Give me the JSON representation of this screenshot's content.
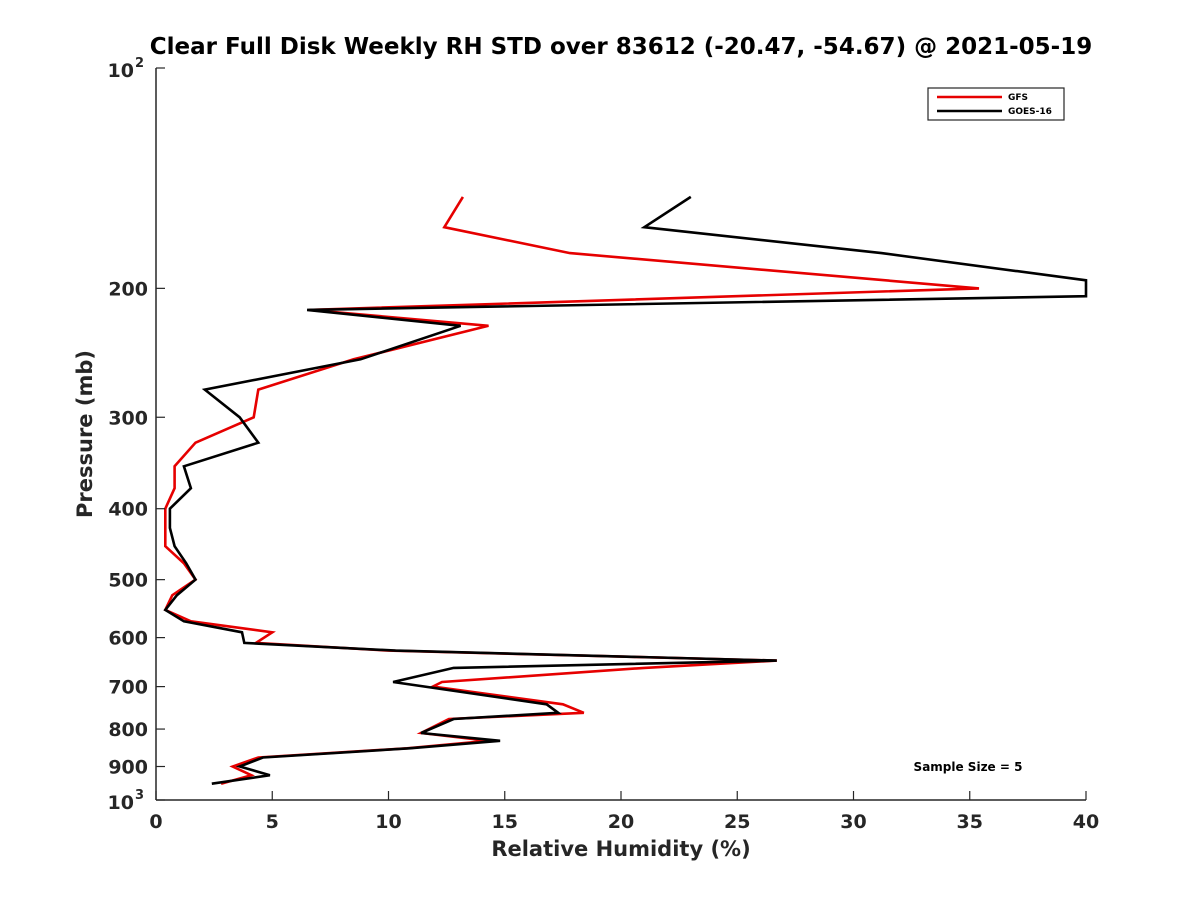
{
  "chart_data": {
    "type": "line",
    "title": "Clear Full Disk Weekly RH STD over 83612 (-20.47, -54.67) @ 2021-05-19",
    "xlabel": "Relative Humidity (%)",
    "ylabel": "Pressure (mb)",
    "xlim": [
      0,
      40
    ],
    "ylim": [
      100,
      1000
    ],
    "y_scale": "log",
    "y_reversed": true,
    "x_ticks": [
      0,
      5,
      10,
      15,
      20,
      25,
      30,
      35,
      40
    ],
    "y_ticks": [
      {
        "value": 100,
        "base": "10",
        "exp": "2"
      },
      {
        "value": 200,
        "label": "200"
      },
      {
        "value": 300,
        "label": "300"
      },
      {
        "value": 400,
        "label": "400"
      },
      {
        "value": 500,
        "label": "500"
      },
      {
        "value": 600,
        "label": "600"
      },
      {
        "value": 700,
        "label": "700"
      },
      {
        "value": 800,
        "label": "800"
      },
      {
        "value": 900,
        "label": "900"
      },
      {
        "value": 1000,
        "base": "10",
        "exp": "3"
      }
    ],
    "legend_position": "top-right",
    "grid": false,
    "annotation": "Sample Size = 5",
    "series": [
      {
        "name": "GFS",
        "color": "#e60000",
        "points": [
          [
            13.2,
            150
          ],
          [
            12.4,
            165
          ],
          [
            17.8,
            179
          ],
          [
            35.4,
            200
          ],
          [
            6.6,
            214
          ],
          [
            14.3,
            225
          ],
          [
            8.5,
            250
          ],
          [
            4.4,
            275
          ],
          [
            4.2,
            300
          ],
          [
            1.7,
            325
          ],
          [
            0.8,
            350
          ],
          [
            0.8,
            375
          ],
          [
            0.4,
            400
          ],
          [
            0.4,
            425
          ],
          [
            0.4,
            450
          ],
          [
            1.2,
            475
          ],
          [
            1.7,
            500
          ],
          [
            0.7,
            525
          ],
          [
            0.4,
            550
          ],
          [
            1.5,
            570
          ],
          [
            5.0,
            590
          ],
          [
            4.3,
            610
          ],
          [
            10.0,
            625
          ],
          [
            26.7,
            645
          ],
          [
            21.0,
            660
          ],
          [
            12.3,
            690
          ],
          [
            11.9,
            700
          ],
          [
            17.5,
            740
          ],
          [
            18.4,
            760
          ],
          [
            12.6,
            775
          ],
          [
            11.4,
            810
          ],
          [
            14.3,
            830
          ],
          [
            10.8,
            850
          ],
          [
            4.4,
            875
          ],
          [
            3.3,
            900
          ],
          [
            4.1,
            925
          ],
          [
            2.8,
            950
          ]
        ]
      },
      {
        "name": "GOES-16",
        "color": "#000000",
        "points": [
          [
            23.0,
            150
          ],
          [
            21.0,
            165
          ],
          [
            31.2,
            179
          ],
          [
            40.0,
            195
          ],
          [
            40.0,
            205
          ],
          [
            6.5,
            214
          ],
          [
            13.1,
            225
          ],
          [
            8.8,
            250
          ],
          [
            2.1,
            275
          ],
          [
            3.6,
            300
          ],
          [
            4.4,
            325
          ],
          [
            1.2,
            350
          ],
          [
            1.5,
            375
          ],
          [
            0.6,
            400
          ],
          [
            0.6,
            425
          ],
          [
            0.8,
            450
          ],
          [
            1.3,
            475
          ],
          [
            1.7,
            500
          ],
          [
            0.9,
            525
          ],
          [
            0.4,
            550
          ],
          [
            1.2,
            570
          ],
          [
            3.7,
            590
          ],
          [
            3.8,
            610
          ],
          [
            10.3,
            625
          ],
          [
            26.7,
            645
          ],
          [
            12.8,
            660
          ],
          [
            10.2,
            690
          ],
          [
            16.8,
            740
          ],
          [
            17.3,
            760
          ],
          [
            12.8,
            775
          ],
          [
            11.4,
            810
          ],
          [
            14.8,
            830
          ],
          [
            10.9,
            850
          ],
          [
            4.6,
            875
          ],
          [
            3.6,
            900
          ],
          [
            4.9,
            925
          ],
          [
            2.4,
            950
          ]
        ]
      }
    ]
  }
}
